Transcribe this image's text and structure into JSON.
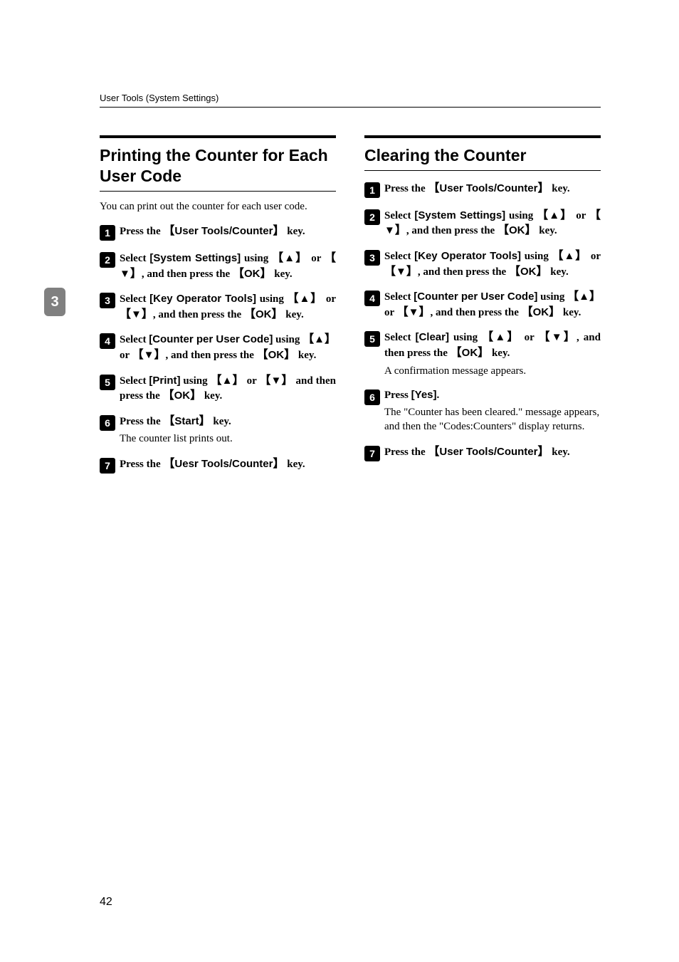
{
  "header": {
    "breadcrumb": "User Tools (System Settings)"
  },
  "sidetab": {
    "number": "3"
  },
  "pagenum": "42",
  "left": {
    "title": "Printing the Counter for Each User Code",
    "intro": "You can print out the counter for each user code.",
    "steps": [
      {
        "num": "1",
        "parts": [
          {
            "t": "Press the ",
            "b": true
          },
          {
            "t": "【",
            "b": true,
            "cls": "bracket-l"
          },
          {
            "t": "User Tools/Counter",
            "b": true,
            "cls": "ui-label"
          },
          {
            "t": "】",
            "b": true,
            "cls": "bracket-r"
          },
          {
            "t": " key.",
            "b": true
          }
        ]
      },
      {
        "num": "2",
        "parts": [
          {
            "t": "Select ",
            "b": true
          },
          {
            "t": "[System Settings]",
            "b": true,
            "cls": "ui-label"
          },
          {
            "t": " using ",
            "b": true
          },
          {
            "t": "【",
            "b": true,
            "cls": "bracket-l"
          },
          {
            "t": "▲",
            "b": true,
            "cls": "arrow"
          },
          {
            "t": "】",
            "b": true,
            "cls": "bracket-r"
          },
          {
            "t": " or ",
            "b": true
          },
          {
            "t": "【",
            "b": true,
            "cls": "bracket-l"
          },
          {
            "t": "▼",
            "b": true,
            "cls": "arrow"
          },
          {
            "t": "】",
            "b": true,
            "cls": "bracket-r"
          },
          {
            "t": ", and then press the ",
            "b": true
          },
          {
            "t": "【",
            "b": true,
            "cls": "bracket-l"
          },
          {
            "t": "OK",
            "b": true,
            "cls": "ui-label"
          },
          {
            "t": "】",
            "b": true,
            "cls": "bracket-r"
          },
          {
            "t": " key.",
            "b": true
          }
        ]
      },
      {
        "num": "3",
        "parts": [
          {
            "t": "Select ",
            "b": true
          },
          {
            "t": "[Key Operator Tools]",
            "b": true,
            "cls": "ui-label"
          },
          {
            "t": " using ",
            "b": true
          },
          {
            "t": "【",
            "b": true,
            "cls": "bracket-l"
          },
          {
            "t": "▲",
            "b": true,
            "cls": "arrow"
          },
          {
            "t": "】",
            "b": true,
            "cls": "bracket-r"
          },
          {
            "t": " or ",
            "b": true
          },
          {
            "t": "【",
            "b": true,
            "cls": "bracket-l"
          },
          {
            "t": "▼",
            "b": true,
            "cls": "arrow"
          },
          {
            "t": "】",
            "b": true,
            "cls": "bracket-r"
          },
          {
            "t": ", and then press the ",
            "b": true
          },
          {
            "t": "【",
            "b": true,
            "cls": "bracket-l"
          },
          {
            "t": "OK",
            "b": true,
            "cls": "ui-label"
          },
          {
            "t": "】",
            "b": true,
            "cls": "bracket-r"
          },
          {
            "t": " key.",
            "b": true
          }
        ]
      },
      {
        "num": "4",
        "parts": [
          {
            "t": "Select ",
            "b": true
          },
          {
            "t": "[Counter per User Code]",
            "b": true,
            "cls": "ui-label"
          },
          {
            "t": " using ",
            "b": true
          },
          {
            "t": "【",
            "b": true,
            "cls": "bracket-l"
          },
          {
            "t": "▲",
            "b": true,
            "cls": "arrow"
          },
          {
            "t": "】",
            "b": true,
            "cls": "bracket-r"
          },
          {
            "t": " or ",
            "b": true
          },
          {
            "t": "【",
            "b": true,
            "cls": "bracket-l"
          },
          {
            "t": "▼",
            "b": true,
            "cls": "arrow"
          },
          {
            "t": "】",
            "b": true,
            "cls": "bracket-r"
          },
          {
            "t": ", and then press the ",
            "b": true
          },
          {
            "t": "【",
            "b": true,
            "cls": "bracket-l"
          },
          {
            "t": "OK",
            "b": true,
            "cls": "ui-label"
          },
          {
            "t": "】",
            "b": true,
            "cls": "bracket-r"
          },
          {
            "t": " key.",
            "b": true
          }
        ]
      },
      {
        "num": "5",
        "parts": [
          {
            "t": "Select ",
            "b": true
          },
          {
            "t": "[Print]",
            "b": true,
            "cls": "ui-label"
          },
          {
            "t": " using ",
            "b": true
          },
          {
            "t": "【",
            "b": true,
            "cls": "bracket-l"
          },
          {
            "t": "▲",
            "b": true,
            "cls": "arrow"
          },
          {
            "t": "】",
            "b": true,
            "cls": "bracket-r"
          },
          {
            "t": " or ",
            "b": true
          },
          {
            "t": "【",
            "b": true,
            "cls": "bracket-l"
          },
          {
            "t": "▼",
            "b": true,
            "cls": "arrow"
          },
          {
            "t": "】",
            "b": true,
            "cls": "bracket-r"
          },
          {
            "t": " and then press the ",
            "b": true
          },
          {
            "t": "【",
            "b": true,
            "cls": "bracket-l"
          },
          {
            "t": "OK",
            "b": true,
            "cls": "ui-label"
          },
          {
            "t": "】",
            "b": true,
            "cls": "bracket-r"
          },
          {
            "t": " key.",
            "b": true
          }
        ]
      },
      {
        "num": "6",
        "parts": [
          {
            "t": "Press the ",
            "b": true
          },
          {
            "t": "【",
            "b": true,
            "cls": "bracket-l"
          },
          {
            "t": "Start",
            "b": true,
            "cls": "ui-label"
          },
          {
            "t": "】",
            "b": true,
            "cls": "bracket-r"
          },
          {
            "t": " key.",
            "b": true
          }
        ],
        "sub": "The counter list prints out."
      },
      {
        "num": "7",
        "parts": [
          {
            "t": "Press the ",
            "b": true
          },
          {
            "t": "【",
            "b": true,
            "cls": "bracket-l"
          },
          {
            "t": "Uesr Tools/Counter",
            "b": true,
            "cls": "ui-label"
          },
          {
            "t": "】",
            "b": true,
            "cls": "bracket-r"
          },
          {
            "t": " key.",
            "b": true
          }
        ]
      }
    ]
  },
  "right": {
    "title": "Clearing the Counter",
    "steps": [
      {
        "num": "1",
        "parts": [
          {
            "t": "Press the ",
            "b": true
          },
          {
            "t": "【",
            "b": true,
            "cls": "bracket-l"
          },
          {
            "t": "User Tools/Counter",
            "b": true,
            "cls": "ui-label"
          },
          {
            "t": "】",
            "b": true,
            "cls": "bracket-r"
          },
          {
            "t": " key.",
            "b": true
          }
        ]
      },
      {
        "num": "2",
        "parts": [
          {
            "t": "Select ",
            "b": true
          },
          {
            "t": "[System Settings]",
            "b": true,
            "cls": "ui-label"
          },
          {
            "t": " using ",
            "b": true
          },
          {
            "t": "【",
            "b": true,
            "cls": "bracket-l"
          },
          {
            "t": "▲",
            "b": true,
            "cls": "arrow"
          },
          {
            "t": "】",
            "b": true,
            "cls": "bracket-r"
          },
          {
            "t": " or ",
            "b": true
          },
          {
            "t": "【",
            "b": true,
            "cls": "bracket-l"
          },
          {
            "t": "▼",
            "b": true,
            "cls": "arrow"
          },
          {
            "t": "】",
            "b": true,
            "cls": "bracket-r"
          },
          {
            "t": ", and then press the ",
            "b": true
          },
          {
            "t": "【",
            "b": true,
            "cls": "bracket-l"
          },
          {
            "t": "OK",
            "b": true,
            "cls": "ui-label"
          },
          {
            "t": "】",
            "b": true,
            "cls": "bracket-r"
          },
          {
            "t": " key.",
            "b": true
          }
        ]
      },
      {
        "num": "3",
        "parts": [
          {
            "t": "Select ",
            "b": true
          },
          {
            "t": "[Key Operator Tools]",
            "b": true,
            "cls": "ui-label"
          },
          {
            "t": " using ",
            "b": true
          },
          {
            "t": "【",
            "b": true,
            "cls": "bracket-l"
          },
          {
            "t": "▲",
            "b": true,
            "cls": "arrow"
          },
          {
            "t": "】",
            "b": true,
            "cls": "bracket-r"
          },
          {
            "t": " or ",
            "b": true
          },
          {
            "t": "【",
            "b": true,
            "cls": "bracket-l"
          },
          {
            "t": "▼",
            "b": true,
            "cls": "arrow"
          },
          {
            "t": "】",
            "b": true,
            "cls": "bracket-r"
          },
          {
            "t": ", and then press the ",
            "b": true
          },
          {
            "t": "【",
            "b": true,
            "cls": "bracket-l"
          },
          {
            "t": "OK",
            "b": true,
            "cls": "ui-label"
          },
          {
            "t": "】",
            "b": true,
            "cls": "bracket-r"
          },
          {
            "t": " key.",
            "b": true
          }
        ]
      },
      {
        "num": "4",
        "parts": [
          {
            "t": "Select ",
            "b": true
          },
          {
            "t": "[Counter per User Code]",
            "b": true,
            "cls": "ui-label"
          },
          {
            "t": " using ",
            "b": true
          },
          {
            "t": "【",
            "b": true,
            "cls": "bracket-l"
          },
          {
            "t": "▲",
            "b": true,
            "cls": "arrow"
          },
          {
            "t": "】",
            "b": true,
            "cls": "bracket-r"
          },
          {
            "t": " or ",
            "b": true
          },
          {
            "t": "【",
            "b": true,
            "cls": "bracket-l"
          },
          {
            "t": "▼",
            "b": true,
            "cls": "arrow"
          },
          {
            "t": "】",
            "b": true,
            "cls": "bracket-r"
          },
          {
            "t": ", and then press the ",
            "b": true
          },
          {
            "t": "【",
            "b": true,
            "cls": "bracket-l"
          },
          {
            "t": "OK",
            "b": true,
            "cls": "ui-label"
          },
          {
            "t": "】",
            "b": true,
            "cls": "bracket-r"
          },
          {
            "t": " key.",
            "b": true
          }
        ]
      },
      {
        "num": "5",
        "parts": [
          {
            "t": "Select ",
            "b": true
          },
          {
            "t": "[Clear]",
            "b": true,
            "cls": "ui-label"
          },
          {
            "t": " using ",
            "b": true
          },
          {
            "t": "【",
            "b": true,
            "cls": "bracket-l"
          },
          {
            "t": "▲",
            "b": true,
            "cls": "arrow"
          },
          {
            "t": "】",
            "b": true,
            "cls": "bracket-r"
          },
          {
            "t": " or ",
            "b": true
          },
          {
            "t": "【",
            "b": true,
            "cls": "bracket-l"
          },
          {
            "t": "▼",
            "b": true,
            "cls": "arrow"
          },
          {
            "t": "】",
            "b": true,
            "cls": "bracket-r"
          },
          {
            "t": ", and then press the ",
            "b": true
          },
          {
            "t": "【",
            "b": true,
            "cls": "bracket-l"
          },
          {
            "t": "OK",
            "b": true,
            "cls": "ui-label"
          },
          {
            "t": "】",
            "b": true,
            "cls": "bracket-r"
          },
          {
            "t": " key.",
            "b": true
          }
        ],
        "sub": "A confirmation message appears."
      },
      {
        "num": "6",
        "parts": [
          {
            "t": "Press ",
            "b": true
          },
          {
            "t": "[Yes]",
            "b": true,
            "cls": "ui-label"
          },
          {
            "t": ".",
            "b": true
          }
        ],
        "sub": "The \"Counter has been cleared.\" message appears, and then the \"Codes:Counters\" display returns."
      },
      {
        "num": "7",
        "parts": [
          {
            "t": "Press the ",
            "b": true
          },
          {
            "t": "【",
            "b": true,
            "cls": "bracket-l"
          },
          {
            "t": "User Tools/Counter",
            "b": true,
            "cls": "ui-label"
          },
          {
            "t": "】",
            "b": true,
            "cls": "bracket-r"
          },
          {
            "t": " key.",
            "b": true
          }
        ]
      }
    ]
  }
}
